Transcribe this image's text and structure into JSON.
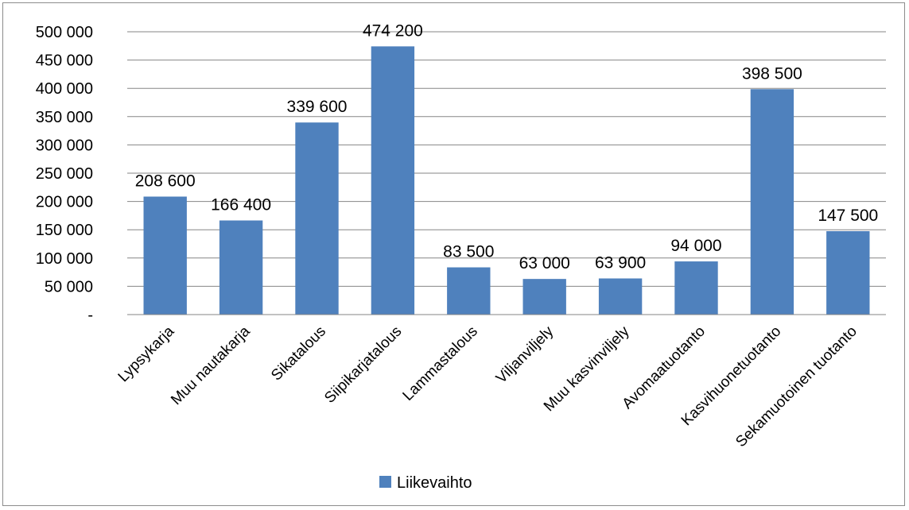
{
  "chart_data": {
    "type": "bar",
    "categories": [
      "Lypsykarja",
      "Muu nautakarja",
      "Sikatalous",
      "Siipikarjatalous",
      "Lammastalous",
      "Viljanviljely",
      "Muu kasvinviljely",
      "Avomaatuotanto",
      "Kasvihuonetuotanto",
      "Sekamuotoinen tuotanto"
    ],
    "series": [
      {
        "name": "Liikevaihto",
        "values": [
          208600,
          166400,
          339600,
          474200,
          83500,
          63000,
          63900,
          94000,
          398500,
          147500
        ],
        "labels": [
          "208 600",
          "166 400",
          "339 600",
          "474 200",
          "83 500",
          "63 000",
          "63 900",
          "94 000",
          "398 500",
          "147 500"
        ],
        "color": "#4f81bd"
      }
    ],
    "ylim": [
      0,
      500000
    ],
    "yticks": [
      0,
      50000,
      100000,
      150000,
      200000,
      250000,
      300000,
      350000,
      400000,
      450000,
      500000
    ],
    "ytick_labels": [
      "-",
      "50 000",
      "100 000",
      "150 000",
      "200 000",
      "250 000",
      "300 000",
      "350 000",
      "400 000",
      "450 000",
      "500 000"
    ],
    "grid": true,
    "legend": "bottom"
  },
  "legend": {
    "label": "Liikevaihto"
  }
}
